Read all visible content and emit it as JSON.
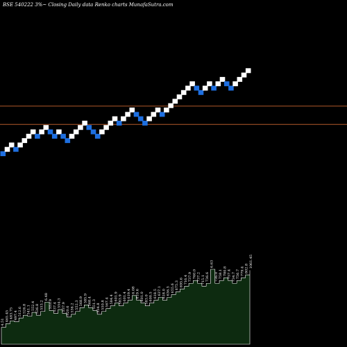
{
  "header": {
    "title": "BSE 540222  3%~  Closing Daily data  Renko  charts MunafaSutra.com"
  },
  "colors": {
    "background": "#000000",
    "up_brick": "#ffffff",
    "down_brick": "#1e6fe0",
    "reference_line": "#b35a2a",
    "volume_fill": "#0d2b10",
    "volume_stroke": "#ffffff"
  },
  "chart_data": {
    "type": "renko",
    "title": "BSE 540222  3%~  Closing Daily data  Renko  charts MunafaSutra.com",
    "brick_percent": 3,
    "bricks": [
      {
        "level": 0,
        "dir": "down"
      },
      {
        "level": 1,
        "dir": "up"
      },
      {
        "level": 2,
        "dir": "up"
      },
      {
        "level": 1,
        "dir": "down"
      },
      {
        "level": 2,
        "dir": "up"
      },
      {
        "level": 3,
        "dir": "up"
      },
      {
        "level": 4,
        "dir": "up"
      },
      {
        "level": 5,
        "dir": "up"
      },
      {
        "level": 4,
        "dir": "down"
      },
      {
        "level": 5,
        "dir": "up"
      },
      {
        "level": 6,
        "dir": "up"
      },
      {
        "level": 5,
        "dir": "down"
      },
      {
        "level": 4,
        "dir": "down"
      },
      {
        "level": 5,
        "dir": "up"
      },
      {
        "level": 4,
        "dir": "down"
      },
      {
        "level": 3,
        "dir": "down"
      },
      {
        "level": 4,
        "dir": "up"
      },
      {
        "level": 5,
        "dir": "up"
      },
      {
        "level": 6,
        "dir": "up"
      },
      {
        "level": 7,
        "dir": "up"
      },
      {
        "level": 6,
        "dir": "down"
      },
      {
        "level": 5,
        "dir": "down"
      },
      {
        "level": 4,
        "dir": "down"
      },
      {
        "level": 5,
        "dir": "up"
      },
      {
        "level": 6,
        "dir": "up"
      },
      {
        "level": 7,
        "dir": "up"
      },
      {
        "level": 8,
        "dir": "up"
      },
      {
        "level": 7,
        "dir": "down"
      },
      {
        "level": 8,
        "dir": "up"
      },
      {
        "level": 9,
        "dir": "up"
      },
      {
        "level": 10,
        "dir": "up"
      },
      {
        "level": 9,
        "dir": "down"
      },
      {
        "level": 8,
        "dir": "down"
      },
      {
        "level": 7,
        "dir": "down"
      },
      {
        "level": 8,
        "dir": "up"
      },
      {
        "level": 9,
        "dir": "up"
      },
      {
        "level": 10,
        "dir": "up"
      },
      {
        "level": 9,
        "dir": "down"
      },
      {
        "level": 10,
        "dir": "up"
      },
      {
        "level": 11,
        "dir": "up"
      },
      {
        "level": 12,
        "dir": "up"
      },
      {
        "level": 13,
        "dir": "up"
      },
      {
        "level": 14,
        "dir": "up"
      },
      {
        "level": 15,
        "dir": "up"
      },
      {
        "level": 16,
        "dir": "up"
      },
      {
        "level": 15,
        "dir": "down"
      },
      {
        "level": 14,
        "dir": "down"
      },
      {
        "level": 15,
        "dir": "up"
      },
      {
        "level": 16,
        "dir": "up"
      },
      {
        "level": 15,
        "dir": "down"
      },
      {
        "level": 16,
        "dir": "up"
      },
      {
        "level": 17,
        "dir": "up"
      },
      {
        "level": 16,
        "dir": "down"
      },
      {
        "level": 15,
        "dir": "down"
      },
      {
        "level": 16,
        "dir": "up"
      },
      {
        "level": 17,
        "dir": "up"
      },
      {
        "level": 18,
        "dir": "up"
      },
      {
        "level": 19,
        "dir": "up"
      }
    ],
    "reference_lines": [
      {
        "level": 10.9
      },
      {
        "level": 6.7
      }
    ],
    "volume": [
      {
        "label": "4.51",
        "value": 0.18
      },
      {
        "label": "465.45",
        "value": 0.22
      },
      {
        "label": "483.75",
        "value": 0.25
      },
      {
        "label": "497.4",
        "value": 0.24
      },
      {
        "label": "512.6",
        "value": 0.28
      },
      {
        "label": "526.8",
        "value": 0.31
      },
      {
        "label": "541.1",
        "value": 0.3
      },
      {
        "label": "552.4",
        "value": 0.34
      },
      {
        "label": "536.8",
        "value": 0.31
      },
      {
        "label": "553.2",
        "value": 0.35
      },
      {
        "label": "6.48",
        "value": 0.45
      },
      {
        "label": "553.9",
        "value": 0.36
      },
      {
        "label": "537.4",
        "value": 0.33
      },
      {
        "label": "554.3",
        "value": 0.37
      },
      {
        "label": "537.9",
        "value": 0.33
      },
      {
        "label": "520.6",
        "value": 0.29
      },
      {
        "label": "536.2",
        "value": 0.32
      },
      {
        "label": "552.3",
        "value": 0.35
      },
      {
        "label": "568.9",
        "value": 0.39
      },
      {
        "label": "585.9",
        "value": 0.42
      },
      {
        "label": "568.4",
        "value": 0.39
      },
      {
        "label": "551.3",
        "value": 0.36
      },
      {
        "label": "534.8",
        "value": 0.32
      },
      {
        "label": "550.8",
        "value": 0.35
      },
      {
        "label": "567.4",
        "value": 0.38
      },
      {
        "label": "584.4",
        "value": 0.41
      },
      {
        "label": "601.9",
        "value": 0.44
      },
      {
        "label": "583.9",
        "value": 0.41
      },
      {
        "label": "601.4",
        "value": 0.44
      },
      {
        "label": "619.4",
        "value": 0.47
      },
      {
        "label": "6.08",
        "value": 0.52
      },
      {
        "label": "619.6",
        "value": 0.47
      },
      {
        "label": "601.0",
        "value": 0.44
      },
      {
        "label": "583.0",
        "value": 0.41
      },
      {
        "label": "600.5",
        "value": 0.44
      },
      {
        "label": "618.5",
        "value": 0.47
      },
      {
        "label": "637.1",
        "value": 0.5
      },
      {
        "label": "618.0",
        "value": 0.47
      },
      {
        "label": "636.5",
        "value": 0.5
      },
      {
        "label": "655.6",
        "value": 0.53
      },
      {
        "label": "675.3",
        "value": 0.56
      },
      {
        "label": "695.6",
        "value": 0.59
      },
      {
        "label": "716.4",
        "value": 0.62
      },
      {
        "label": "737.9",
        "value": 0.65
      },
      {
        "label": "760.0",
        "value": 0.68
      },
      {
        "label": "737.2",
        "value": 0.65
      },
      {
        "label": "715.1",
        "value": 0.62
      },
      {
        "label": "736.6",
        "value": 0.65
      },
      {
        "label": "6.63",
        "value": 0.8
      },
      {
        "label": "736.0",
        "value": 0.65
      },
      {
        "label": "758.1",
        "value": 0.68
      },
      {
        "label": "780.8",
        "value": 0.71
      },
      {
        "label": "757.4",
        "value": 0.68
      },
      {
        "label": "734.7",
        "value": 0.65
      },
      {
        "label": "756.7",
        "value": 0.68
      },
      {
        "label": "779.4",
        "value": 0.71
      },
      {
        "label": "802.8",
        "value": 0.74
      },
      {
        "label": "1061.45",
        "value": 0.79
      }
    ]
  }
}
